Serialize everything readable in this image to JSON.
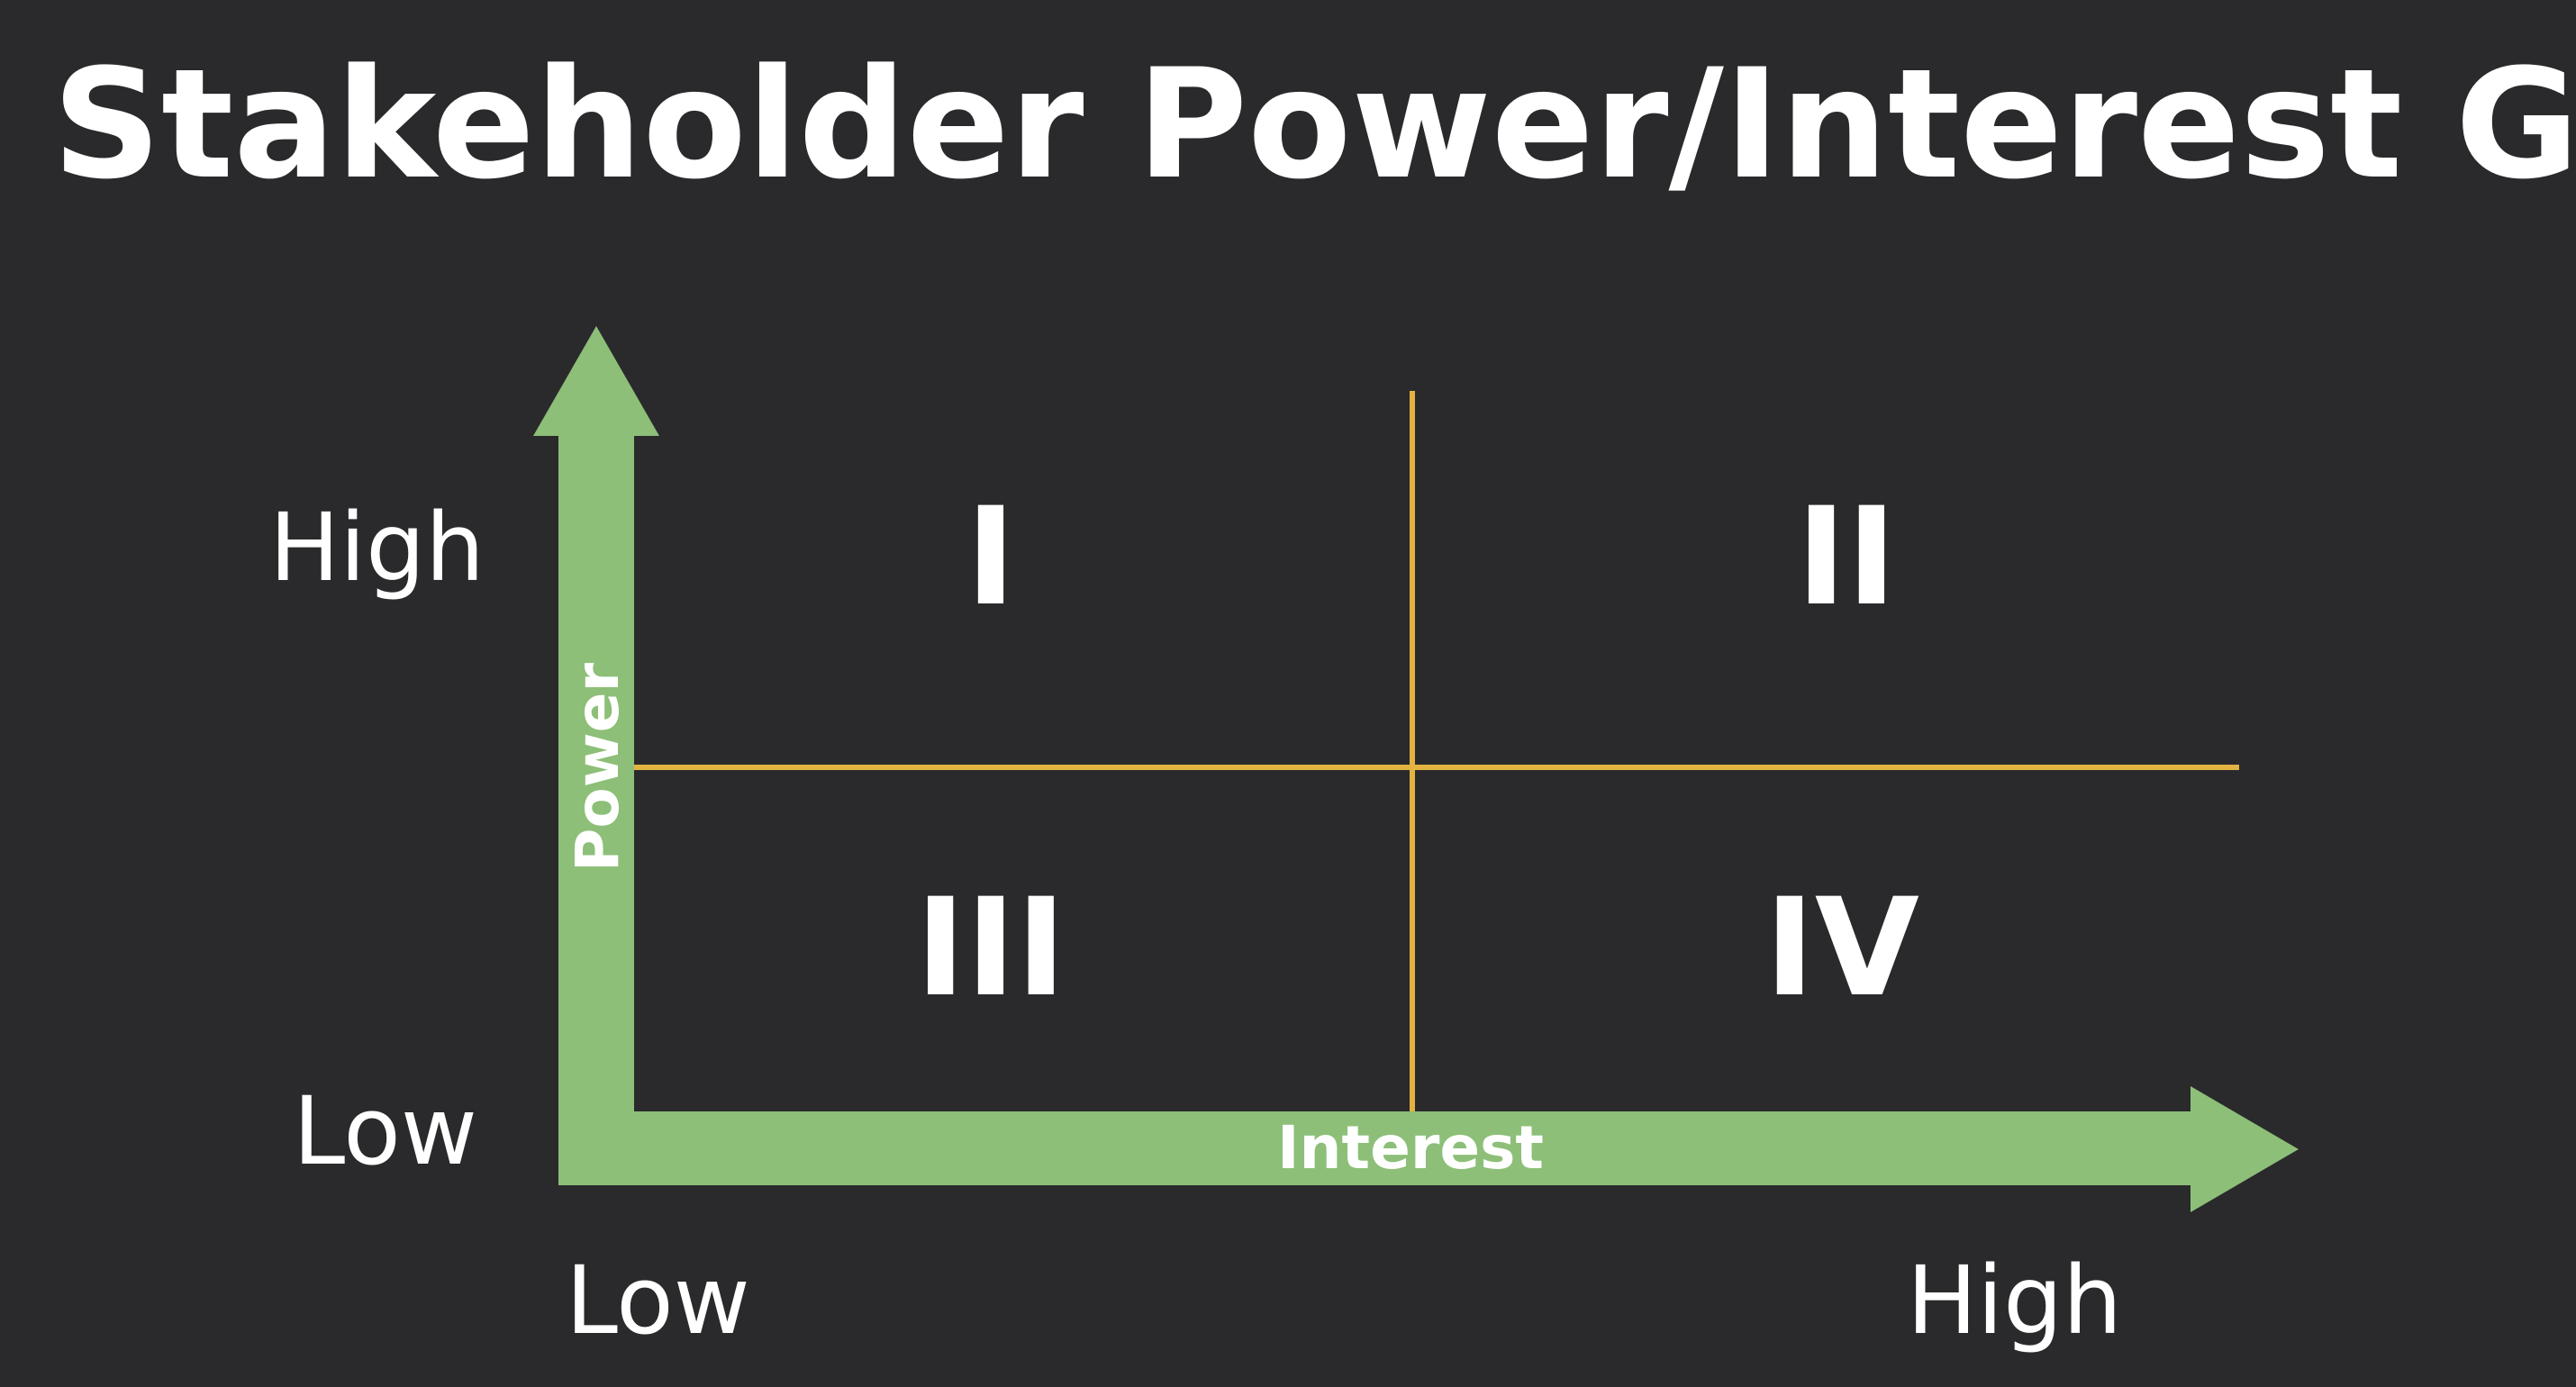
{
  "title": "Stakeholder Power/Interest Grid",
  "axes": {
    "y": {
      "name": "Power",
      "high_label": "High",
      "low_label": "Low"
    },
    "x": {
      "name": "Interest",
      "low_label": "Low",
      "high_label": "High"
    }
  },
  "quadrants": [
    {
      "id": "top-left",
      "numeral": "I"
    },
    {
      "id": "top-right",
      "numeral": "II"
    },
    {
      "id": "bottom-left",
      "numeral": "III"
    },
    {
      "id": "bottom-right",
      "numeral": "IV"
    }
  ],
  "colors": {
    "background": "#2a2a2c",
    "axis_arrow": "#8dbf78",
    "divider": "#e3b341",
    "text": "#ffffff"
  }
}
